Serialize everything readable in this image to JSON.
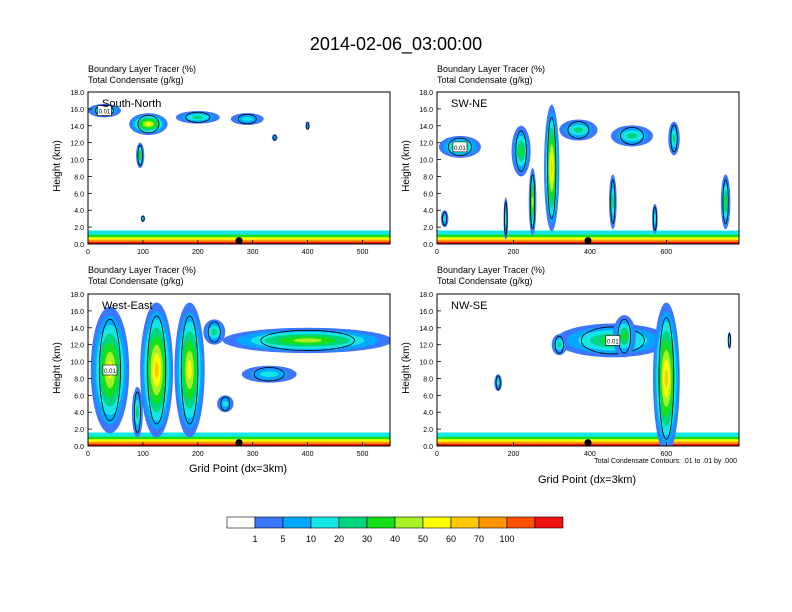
{
  "title": "2014-02-06_03:00:00",
  "xaxis_label": "Grid Point (dx=3km)",
  "yaxis_label": "Height (km)",
  "panel_header_line1": "Boundary Layer Tracer   (%)",
  "panel_header_line2": "Total Condensate   (g/kg)",
  "contour_note": "Total Condensate Contours: .01 to .01 by .000",
  "contour_label": "0.01",
  "colorbar": {
    "labels": [
      "1",
      "5",
      "10",
      "20",
      "30",
      "40",
      "50",
      "60",
      "70",
      "100"
    ],
    "colors": [
      "#ffffff",
      "#3c78ff",
      "#00a8ff",
      "#14e6e6",
      "#00d47c",
      "#18e018",
      "#a8f028",
      "#ffff00",
      "#ffc800",
      "#ff9600",
      "#ff5000",
      "#f01010"
    ]
  },
  "chart_data": [
    {
      "type": "heatmap",
      "panel": "South-North",
      "xlim": [
        0,
        550
      ],
      "ylim": [
        0,
        18
      ],
      "xticks": [
        "0",
        "100",
        "200",
        "300",
        "400",
        "500"
      ],
      "yticks": [
        "0.0",
        "2.0",
        "4.0",
        "6.0",
        "8.0",
        "10.0",
        "12.0",
        "14.0",
        "16.0",
        "18.0"
      ],
      "blobs": [
        {
          "x": 30,
          "y": 15.8,
          "w": 60,
          "h": 1.6,
          "c": 0.45
        },
        {
          "x": 110,
          "y": 14.2,
          "w": 70,
          "h": 2.6,
          "c": 0.75
        },
        {
          "x": 200,
          "y": 15.0,
          "w": 80,
          "h": 1.5,
          "c": 0.45
        },
        {
          "x": 290,
          "y": 14.8,
          "w": 60,
          "h": 1.4,
          "c": 0.35
        },
        {
          "x": 340,
          "y": 12.6,
          "w": 10,
          "h": 0.8,
          "c": 0.25
        },
        {
          "x": 400,
          "y": 14.0,
          "w": 8,
          "h": 1.0,
          "c": 0.2
        },
        {
          "x": 95,
          "y": 10.5,
          "w": 15,
          "h": 3.0,
          "c": 0.6
        },
        {
          "x": 100,
          "y": 3.0,
          "w": 8,
          "h": 0.8,
          "c": 0.3
        }
      ]
    },
    {
      "type": "heatmap",
      "panel": "SW-NE",
      "xlim": [
        0,
        790
      ],
      "ylim": [
        0,
        18
      ],
      "xticks": [
        "0",
        "200",
        "400",
        "600"
      ],
      "yticks": [
        "0.0",
        "2.0",
        "4.0",
        "6.0",
        "8.0",
        "10.0",
        "12.0",
        "14.0",
        "16.0",
        "18.0"
      ],
      "blobs": [
        {
          "x": 60,
          "y": 11.5,
          "w": 110,
          "h": 2.6,
          "c": 0.5
        },
        {
          "x": 220,
          "y": 11.0,
          "w": 50,
          "h": 6.0,
          "c": 0.55
        },
        {
          "x": 300,
          "y": 9.0,
          "w": 40,
          "h": 15.0,
          "c": 0.85
        },
        {
          "x": 250,
          "y": 5.0,
          "w": 20,
          "h": 8.0,
          "c": 0.7
        },
        {
          "x": 370,
          "y": 13.5,
          "w": 100,
          "h": 2.5,
          "c": 0.45
        },
        {
          "x": 510,
          "y": 12.8,
          "w": 110,
          "h": 2.5,
          "c": 0.45
        },
        {
          "x": 620,
          "y": 12.5,
          "w": 30,
          "h": 4.0,
          "c": 0.45
        },
        {
          "x": 460,
          "y": 5.0,
          "w": 20,
          "h": 6.5,
          "c": 0.4
        },
        {
          "x": 570,
          "y": 3.0,
          "w": 15,
          "h": 3.5,
          "c": 0.35
        },
        {
          "x": 755,
          "y": 5.0,
          "w": 25,
          "h": 6.5,
          "c": 0.55
        },
        {
          "x": 180,
          "y": 3.0,
          "w": 12,
          "h": 5.0,
          "c": 0.3
        },
        {
          "x": 20,
          "y": 3.0,
          "w": 20,
          "h": 2.0,
          "c": 0.3
        }
      ]
    },
    {
      "type": "heatmap",
      "panel": "West-East",
      "xlim": [
        0,
        550
      ],
      "ylim": [
        0,
        18
      ],
      "xticks": [
        "0",
        "100",
        "200",
        "300",
        "400",
        "500"
      ],
      "yticks": [
        "0.0",
        "2.0",
        "4.0",
        "6.0",
        "8.0",
        "10.0",
        "12.0",
        "14.0",
        "16.0",
        "18.0"
      ],
      "blobs": [
        {
          "x": 40,
          "y": 9.0,
          "w": 70,
          "h": 15.0,
          "c": 0.75
        },
        {
          "x": 125,
          "y": 9.0,
          "w": 60,
          "h": 16.0,
          "c": 0.85
        },
        {
          "x": 185,
          "y": 9.0,
          "w": 55,
          "h": 16.0,
          "c": 0.75
        },
        {
          "x": 400,
          "y": 12.5,
          "w": 310,
          "h": 3.0,
          "c": 0.65
        },
        {
          "x": 330,
          "y": 8.5,
          "w": 100,
          "h": 2.0,
          "c": 0.35
        },
        {
          "x": 230,
          "y": 13.5,
          "w": 40,
          "h": 3.0,
          "c": 0.45
        },
        {
          "x": 90,
          "y": 4.0,
          "w": 20,
          "h": 6.0,
          "c": 0.45
        },
        {
          "x": 250,
          "y": 5.0,
          "w": 30,
          "h": 2.0,
          "c": 0.3
        }
      ]
    },
    {
      "type": "heatmap",
      "panel": "NW-SE",
      "xlim": [
        0,
        790
      ],
      "ylim": [
        0,
        18
      ],
      "xticks": [
        "0",
        "200",
        "400",
        "600"
      ],
      "yticks": [
        "0.0",
        "2.0",
        "4.0",
        "6.0",
        "8.0",
        "10.0",
        "12.0",
        "14.0",
        "16.0",
        "18.0"
      ],
      "blobs": [
        {
          "x": 460,
          "y": 12.5,
          "w": 300,
          "h": 4.0,
          "c": 0.55
        },
        {
          "x": 600,
          "y": 8.0,
          "w": 70,
          "h": 18.0,
          "c": 0.9
        },
        {
          "x": 490,
          "y": 13.0,
          "w": 60,
          "h": 5.0,
          "c": 0.55
        },
        {
          "x": 320,
          "y": 12.0,
          "w": 40,
          "h": 2.5,
          "c": 0.4
        },
        {
          "x": 160,
          "y": 7.5,
          "w": 20,
          "h": 2.0,
          "c": 0.3
        },
        {
          "x": 765,
          "y": 12.5,
          "w": 10,
          "h": 2.0,
          "c": 0.3
        }
      ]
    }
  ]
}
